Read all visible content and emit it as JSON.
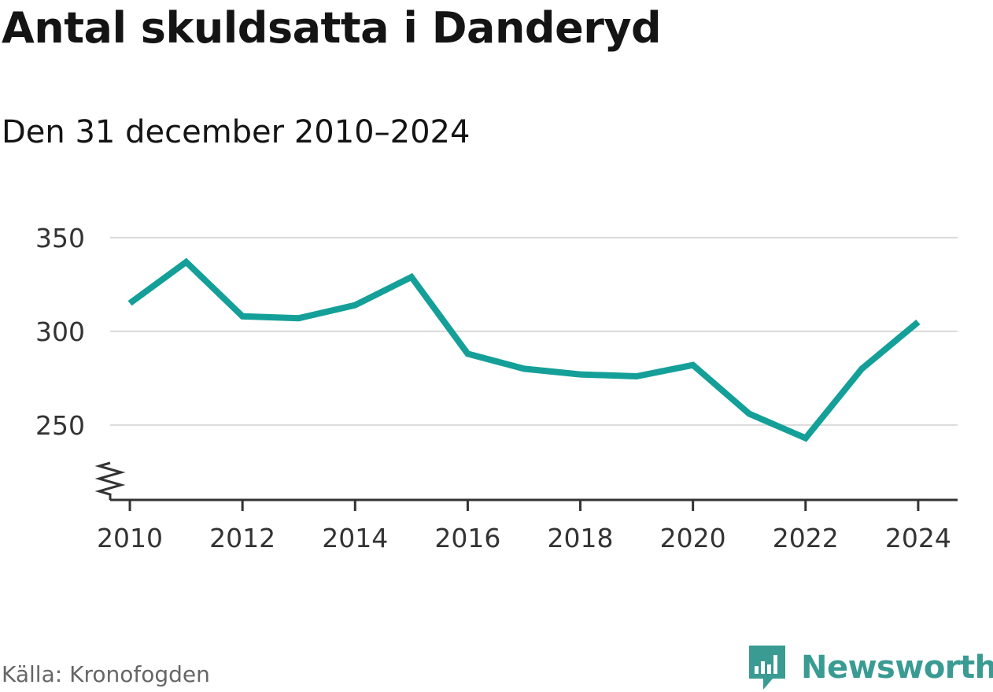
{
  "title": "Antal skuldsatta i Danderyd",
  "subtitle": "Den 31 december 2010–2024",
  "source": "Källa: Kronofogden",
  "logo": {
    "text": "Newsworthy",
    "icon": "newsworthy-logo-icon",
    "color": "#3a9b93"
  },
  "colors": {
    "line": "#14a099",
    "grid": "#d9d9d9",
    "axis": "#333333"
  },
  "chart_data": {
    "type": "line",
    "title": "Antal skuldsatta i Danderyd",
    "subtitle": "Den 31 december 2010–2024",
    "xlabel": "",
    "ylabel": "",
    "x": [
      2010,
      2011,
      2012,
      2013,
      2014,
      2015,
      2016,
      2017,
      2018,
      2019,
      2020,
      2021,
      2022,
      2023,
      2024
    ],
    "series": [
      {
        "name": "Antal skuldsatta",
        "values": [
          315,
          337,
          308,
          307,
          314,
          329,
          288,
          280,
          277,
          276,
          282,
          256,
          243,
          280,
          305
        ]
      }
    ],
    "xticks": [
      "2010",
      "2012",
      "2014",
      "2016",
      "2018",
      "2020",
      "2022",
      "2024"
    ],
    "yticks": [
      "250",
      "300",
      "350"
    ],
    "ylim": [
      210,
      355
    ],
    "xlim": [
      2009.65,
      2024.7
    ],
    "axis_break": true,
    "grid": true
  }
}
